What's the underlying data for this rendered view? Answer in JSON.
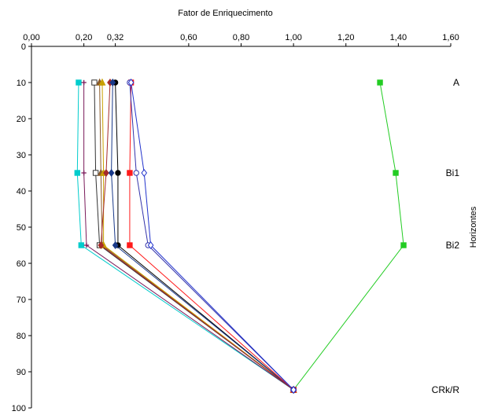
{
  "chart_data": {
    "type": "line",
    "title": "",
    "xlabel": "Fator de Enriquecimento",
    "ylabel": "Horizontes",
    "xlim": [
      0,
      1.6
    ],
    "ylim": [
      100,
      0
    ],
    "x_axis_position": "top",
    "x_ticks": [
      "0,00",
      "0,20",
      "0,32",
      "0,60",
      "0,80",
      "1,00",
      "1,20",
      "1,40",
      "1,60"
    ],
    "x_tick_values": [
      0,
      0.2,
      0.32,
      0.6,
      0.8,
      1.0,
      1.2,
      1.4,
      1.6
    ],
    "y_ticks": [
      "0",
      "10",
      "20",
      "30",
      "40",
      "50",
      "60",
      "70",
      "80",
      "90",
      "100"
    ],
    "y_tick_values": [
      0,
      10,
      20,
      30,
      40,
      50,
      60,
      70,
      80,
      90,
      100
    ],
    "grid": false,
    "horizon_labels": [
      {
        "label": "A",
        "y": 10
      },
      {
        "label": "Bi1",
        "y": 35
      },
      {
        "label": "Bi2",
        "y": 55
      },
      {
        "label": "CRk/R",
        "y": 95
      }
    ],
    "series": [
      {
        "color": "#22cc22",
        "marker": "filled-square",
        "x": [
          1.33,
          1.39,
          1.42,
          1.0
        ],
        "y": [
          10,
          35,
          55,
          95
        ]
      },
      {
        "color": "#00cccc",
        "marker": "filled-square",
        "x": [
          0.18,
          0.175,
          0.19,
          1.0
        ],
        "y": [
          10,
          35,
          55,
          95
        ]
      },
      {
        "color": "#7a1a5a",
        "marker": "plus",
        "x": [
          0.2,
          0.2,
          0.21,
          1.0
        ],
        "y": [
          10,
          35,
          55,
          95
        ]
      },
      {
        "color": "#333333",
        "marker": "open-square",
        "x": [
          0.24,
          0.245,
          0.26,
          1.0
        ],
        "y": [
          10,
          35,
          55,
          95
        ]
      },
      {
        "color": "#8b5a2b",
        "marker": "filled-triangle",
        "x": [
          0.26,
          0.265,
          0.27,
          1.0
        ],
        "y": [
          10,
          35,
          55,
          95
        ]
      },
      {
        "color": "#c8a000",
        "marker": "filled-triangle",
        "x": [
          0.27,
          0.275,
          0.275,
          1.0
        ],
        "y": [
          10,
          35,
          55,
          95
        ]
      },
      {
        "color": "#a52a2a",
        "marker": "filled-diamond",
        "x": [
          0.3,
          0.285,
          0.265,
          1.0
        ],
        "y": [
          10,
          35,
          55,
          95
        ]
      },
      {
        "color": "#000000",
        "marker": "filled-circle",
        "x": [
          0.32,
          0.33,
          0.33,
          1.0
        ],
        "y": [
          10,
          35,
          55,
          95
        ]
      },
      {
        "color": "#1a3a8a",
        "marker": "filled-diamond",
        "x": [
          0.31,
          0.305,
          0.32,
          1.0
        ],
        "y": [
          10,
          35,
          55,
          95
        ]
      },
      {
        "color": "#ff1a1a",
        "marker": "filled-square",
        "x": [
          0.38,
          0.375,
          0.375,
          1.0
        ],
        "y": [
          10,
          35,
          55,
          95
        ]
      },
      {
        "color": "#3333aa",
        "marker": "open-circle",
        "x": [
          0.375,
          0.4,
          0.445,
          1.0
        ],
        "y": [
          10,
          35,
          55,
          95
        ]
      },
      {
        "color": "#2233cc",
        "marker": "open-diamond",
        "x": [
          0.38,
          0.43,
          0.455,
          1.0
        ],
        "y": [
          10,
          35,
          55,
          95
        ]
      }
    ]
  }
}
